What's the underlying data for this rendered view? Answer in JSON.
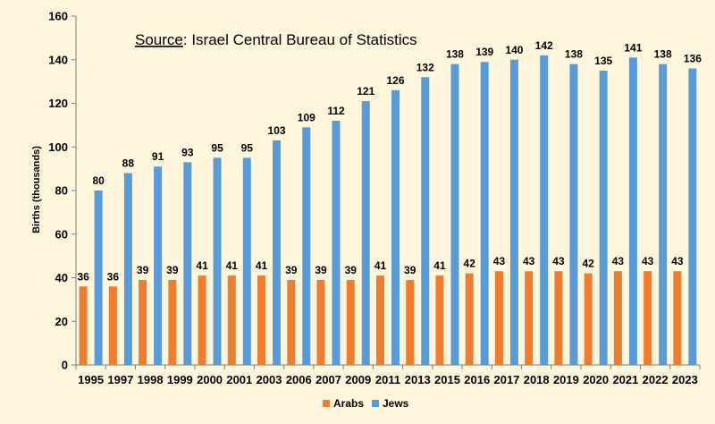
{
  "chart_data": {
    "type": "bar",
    "annotation": {
      "label": "Source",
      "text": ":  Israel Central Bureau of Statistics"
    },
    "ylabel": "Births (thousands)",
    "xlabel": "",
    "ylim": [
      0,
      160
    ],
    "yticks": [
      0,
      20,
      40,
      60,
      80,
      100,
      120,
      140,
      160
    ],
    "grid": false,
    "legend_position": "bottom",
    "categories": [
      "1995",
      "1997",
      "1998",
      "1999",
      "2000",
      "2001",
      "2003",
      "2006",
      "2007",
      "2009",
      "2011",
      "2013",
      "2015",
      "2016",
      "2017",
      "2018",
      "2019",
      "2020",
      "2021",
      "2022",
      "2023"
    ],
    "series": [
      {
        "name": "Arabs",
        "color": "#ed7d31",
        "values": [
          36,
          36,
          39,
          39,
          41,
          41,
          41,
          39,
          39,
          39,
          41,
          39,
          41,
          42,
          43,
          43,
          43,
          42,
          43,
          43,
          43
        ]
      },
      {
        "name": "Jews",
        "color": "#5b9bd5",
        "values": [
          80,
          88,
          91,
          93,
          95,
          95,
          103,
          109,
          112,
          121,
          126,
          132,
          138,
          139,
          140,
          142,
          138,
          135,
          141,
          138,
          136
        ]
      }
    ]
  }
}
